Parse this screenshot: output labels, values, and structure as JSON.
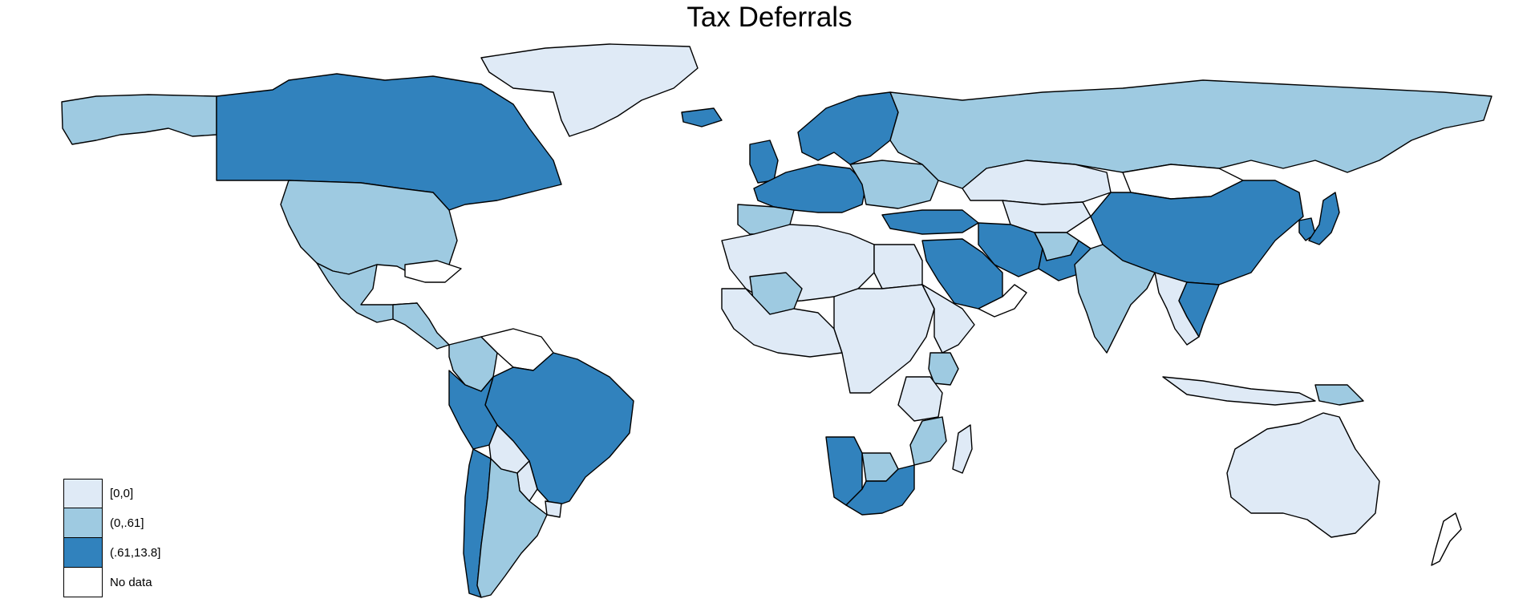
{
  "map": {
    "title": "Tax Deferrals",
    "colors": {
      "zero": "#dfeaf6",
      "low": "#9ecae1",
      "high": "#3182bd",
      "nodata": "#ffffff",
      "border": "#000000"
    },
    "legend": [
      {
        "label": "[0,0]",
        "color": "#dfeaf6"
      },
      {
        "label": "(0,.61]",
        "color": "#9ecae1"
      },
      {
        "label": "(.61,13.8]",
        "color": "#3182bd"
      },
      {
        "label": "No data",
        "color": "#ffffff"
      }
    ],
    "regions": [
      {
        "name": "Alaska",
        "class": "low"
      },
      {
        "name": "Canada",
        "class": "high"
      },
      {
        "name": "Greenland",
        "class": "zero"
      },
      {
        "name": "United States",
        "class": "low"
      },
      {
        "name": "Mexico",
        "class": "low"
      },
      {
        "name": "Central America",
        "class": "low"
      },
      {
        "name": "Caribbean",
        "class": "nodata"
      },
      {
        "name": "Colombia",
        "class": "low"
      },
      {
        "name": "Venezuela",
        "class": "nodata"
      },
      {
        "name": "Brazil",
        "class": "high"
      },
      {
        "name": "Peru",
        "class": "high"
      },
      {
        "name": "Bolivia",
        "class": "zero"
      },
      {
        "name": "Paraguay",
        "class": "zero"
      },
      {
        "name": "Uruguay",
        "class": "zero"
      },
      {
        "name": "Chile",
        "class": "high"
      },
      {
        "name": "Argentina",
        "class": "low"
      },
      {
        "name": "Iceland",
        "class": "high"
      },
      {
        "name": "Scandinavia",
        "class": "high"
      },
      {
        "name": "United Kingdom",
        "class": "high"
      },
      {
        "name": "Western Europe",
        "class": "high"
      },
      {
        "name": "Iberia",
        "class": "low"
      },
      {
        "name": "Eastern Europe",
        "class": "low"
      },
      {
        "name": "Russia",
        "class": "low"
      },
      {
        "name": "Turkey",
        "class": "high"
      },
      {
        "name": "Kazakhstan",
        "class": "zero"
      },
      {
        "name": "Central Asia",
        "class": "zero"
      },
      {
        "name": "Mongolia",
        "class": "nodata"
      },
      {
        "name": "China",
        "class": "high"
      },
      {
        "name": "Korea",
        "class": "high"
      },
      {
        "name": "Japan",
        "class": "high"
      },
      {
        "name": "Iran",
        "class": "high"
      },
      {
        "name": "Saudi Arabia",
        "class": "high"
      },
      {
        "name": "Arabian Peninsula",
        "class": "nodata"
      },
      {
        "name": "Afghanistan",
        "class": "low"
      },
      {
        "name": "Pakistan",
        "class": "high"
      },
      {
        "name": "India",
        "class": "low"
      },
      {
        "name": "Southeast Asia",
        "class": "zero"
      },
      {
        "name": "Vietnam",
        "class": "high"
      },
      {
        "name": "Indonesia",
        "class": "zero"
      },
      {
        "name": "Papua New Guinea",
        "class": "low"
      },
      {
        "name": "Australia",
        "class": "zero"
      },
      {
        "name": "New Zealand",
        "class": "nodata"
      },
      {
        "name": "North Africa",
        "class": "zero"
      },
      {
        "name": "Mali",
        "class": "low"
      },
      {
        "name": "Egypt",
        "class": "zero"
      },
      {
        "name": "West Africa",
        "class": "zero"
      },
      {
        "name": "Central Africa",
        "class": "zero"
      },
      {
        "name": "East Africa",
        "class": "zero"
      },
      {
        "name": "Kenya",
        "class": "low"
      },
      {
        "name": "Tanzania",
        "class": "zero"
      },
      {
        "name": "Mozambique",
        "class": "low"
      },
      {
        "name": "Namibia",
        "class": "high"
      },
      {
        "name": "Botswana",
        "class": "low"
      },
      {
        "name": "South Africa",
        "class": "high"
      },
      {
        "name": "Madagascar",
        "class": "zero"
      }
    ]
  }
}
